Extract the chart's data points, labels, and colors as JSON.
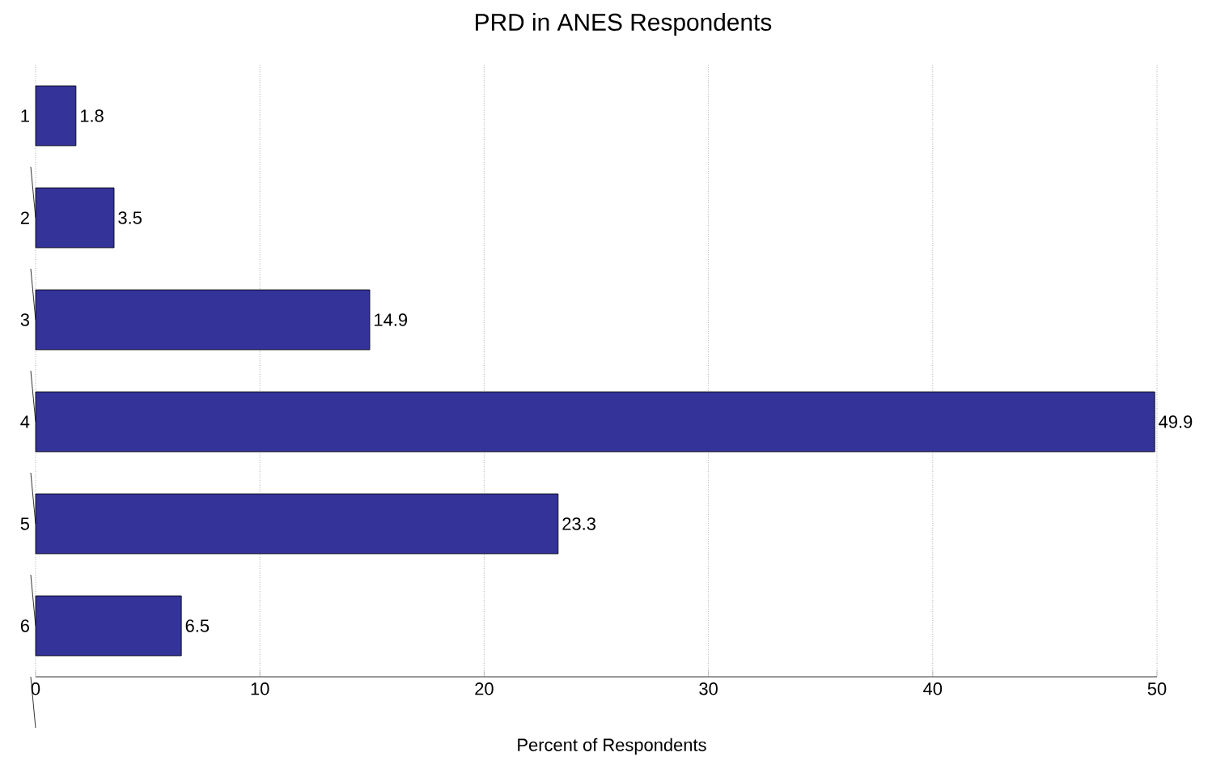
{
  "chart_data": {
    "type": "bar",
    "orientation": "horizontal",
    "title": "PRD in ANES Respondents",
    "xlabel": "Percent of Respondents",
    "categories": [
      "1",
      "2",
      "3",
      "4",
      "5",
      "6"
    ],
    "values": [
      1.8,
      3.5,
      14.9,
      49.9,
      23.3,
      6.5
    ],
    "color": "#333399",
    "xlim": [
      0,
      50
    ],
    "xticks": [
      0,
      10,
      20,
      30,
      40,
      50
    ],
    "grid": "x",
    "data_labels": true
  }
}
